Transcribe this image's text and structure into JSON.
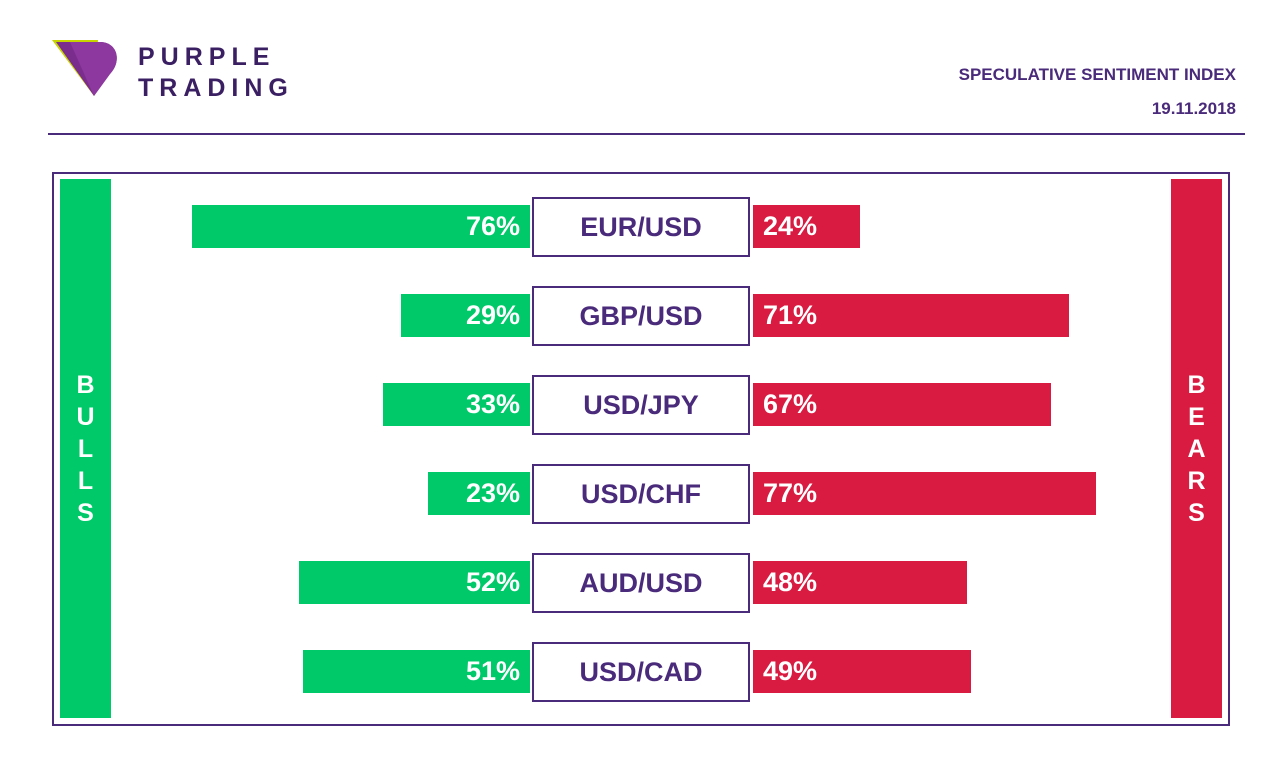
{
  "brand": {
    "line1": "PURPLE",
    "line2": "TRADING"
  },
  "header": {
    "title": "SPECULATIVE SENTIMENT INDEX",
    "date": "19.11.2018"
  },
  "colors": {
    "purple": "#4a2a7a",
    "dark_purple": "#3b1f63",
    "bull_green": "#00c96a",
    "bear_red": "#d91b42",
    "logo_yellow": "#c8d400"
  },
  "chart_data": {
    "type": "bar",
    "title": "SPECULATIVE SENTIMENT INDEX",
    "categories": [
      "EUR/USD",
      "GBP/USD",
      "USD/JPY",
      "USD/CHF",
      "AUD/USD",
      "USD/CAD"
    ],
    "series": [
      {
        "name": "BULLS",
        "values": [
          76,
          29,
          33,
          23,
          52,
          51
        ],
        "labels": [
          "76%",
          "29%",
          "33%",
          "23%",
          "52%",
          "51%"
        ]
      },
      {
        "name": "BEARS",
        "values": [
          24,
          71,
          67,
          77,
          48,
          49
        ],
        "labels": [
          "24%",
          "71%",
          "67%",
          "77%",
          "48%",
          "49%"
        ]
      }
    ],
    "ylim": [
      0,
      100
    ],
    "legend": "left and right sides"
  }
}
